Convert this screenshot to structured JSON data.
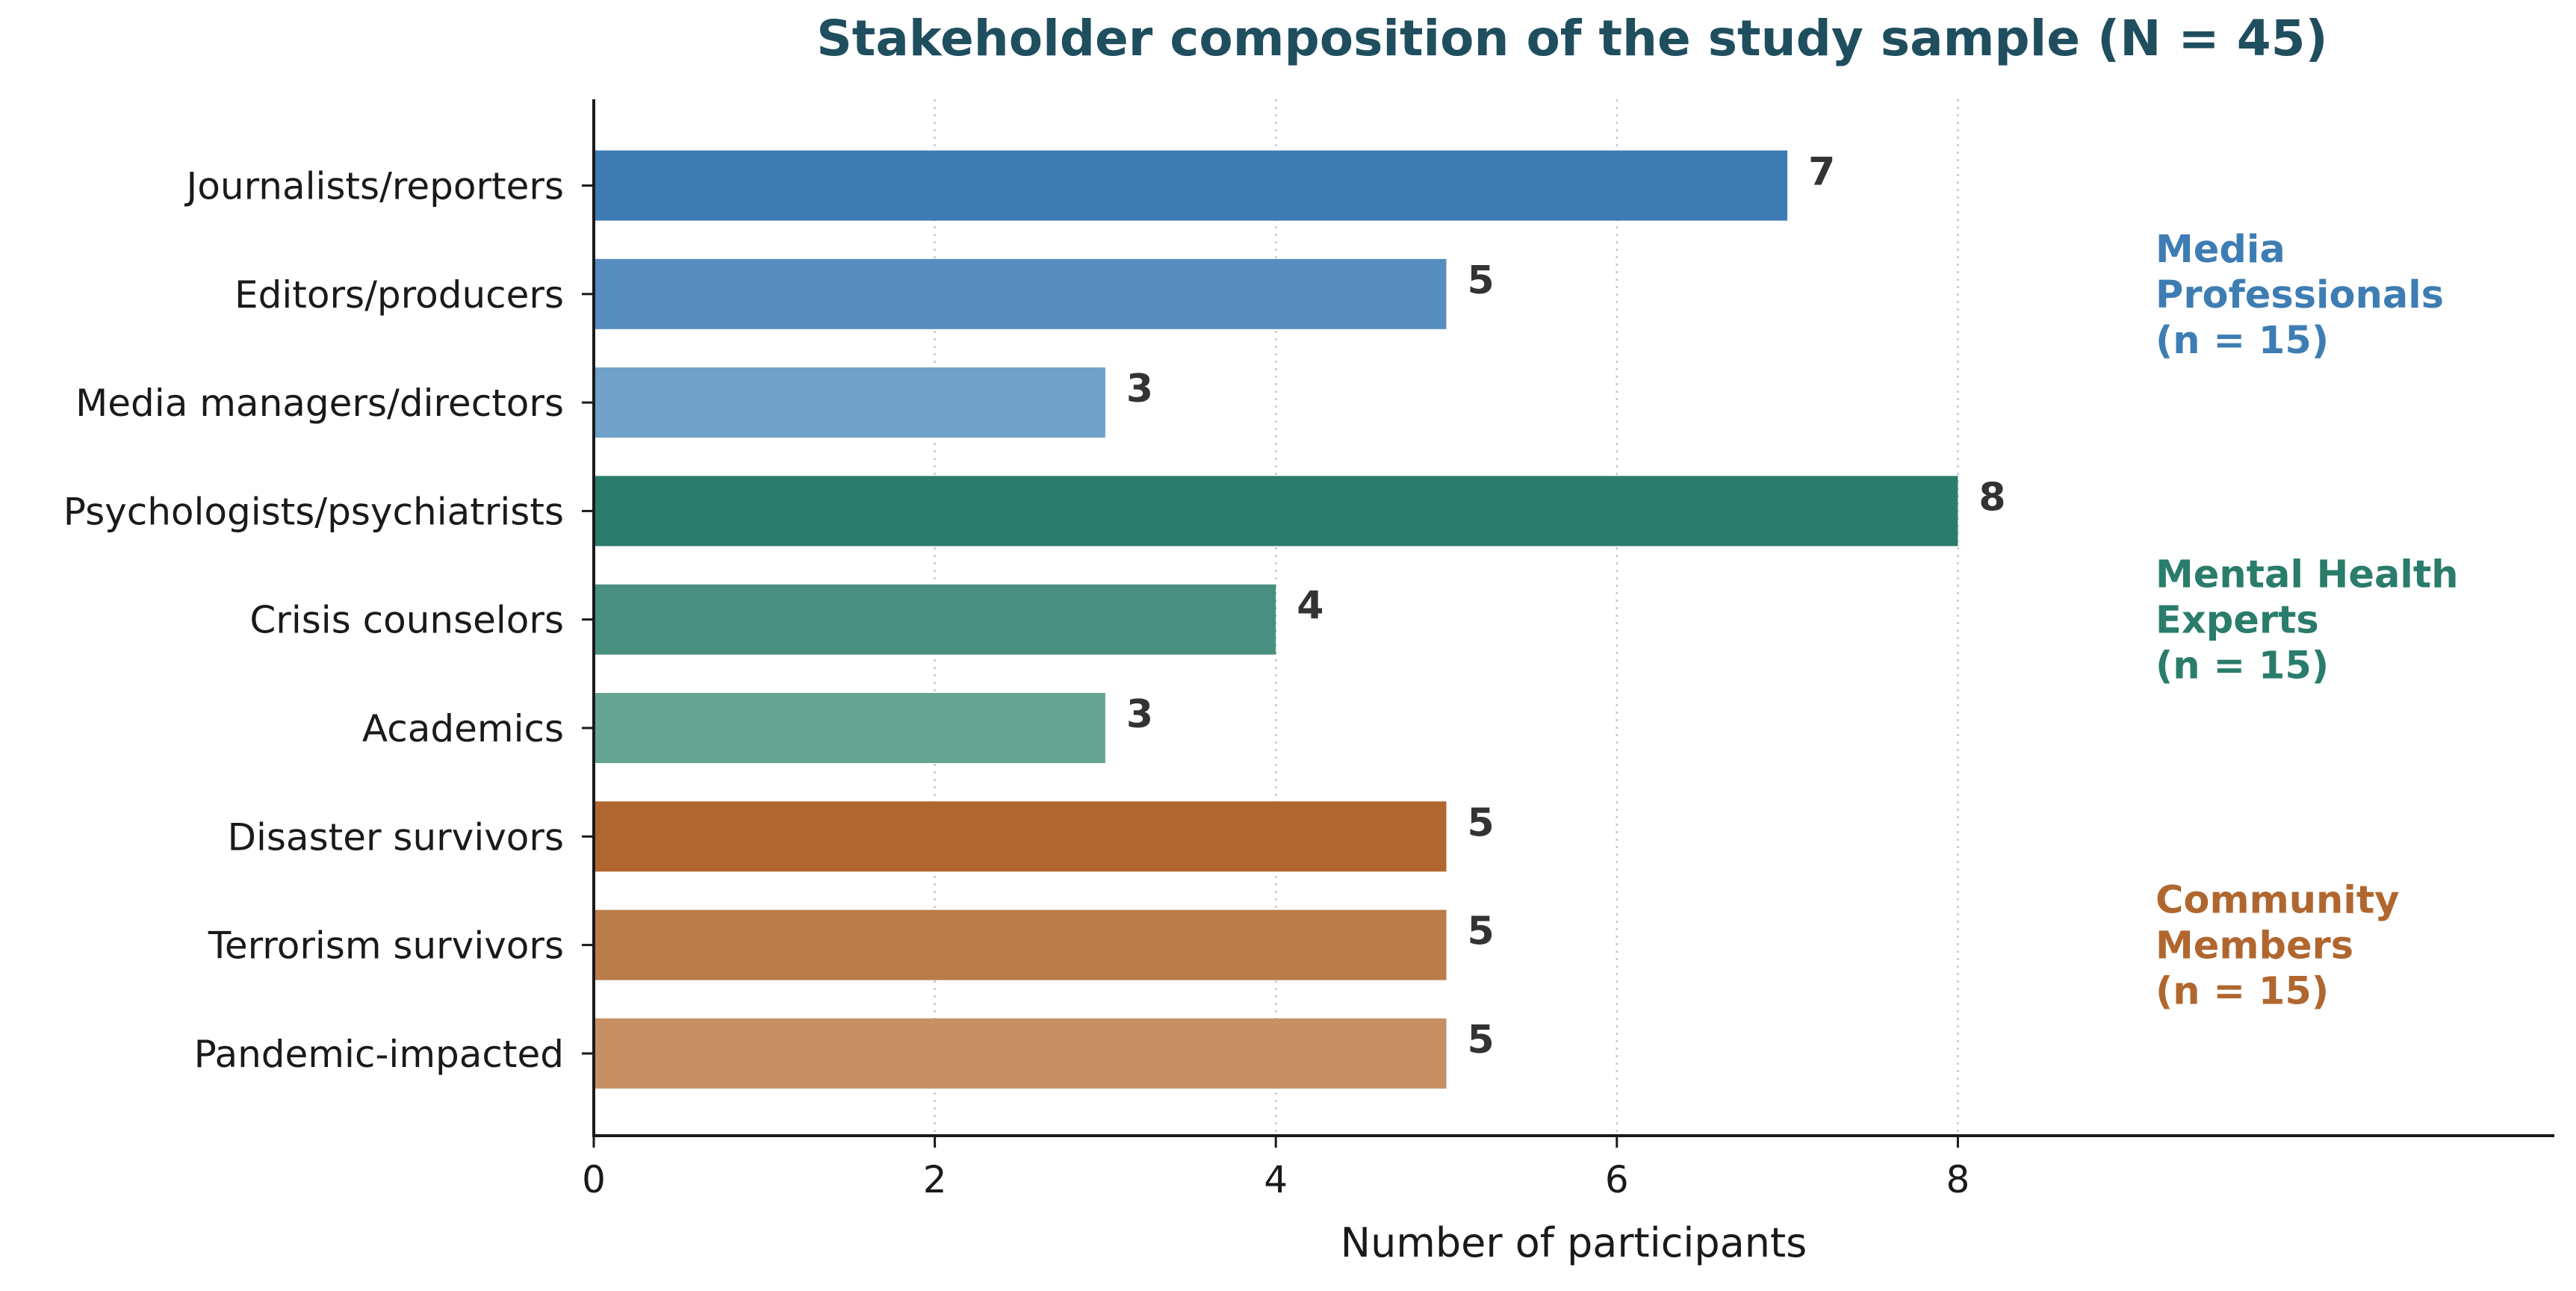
{
  "chart_data": {
    "type": "bar",
    "orientation": "horizontal",
    "title": "Stakeholder composition of the study sample (N = 45)",
    "xlabel": "Number of participants",
    "ylabel": "",
    "xlim": [
      0,
      11.5
    ],
    "xticks": [
      0,
      2,
      4,
      6,
      8
    ],
    "grid": "vertical dotted",
    "categories": [
      "Journalists/reporters",
      "Editors/producers",
      "Media managers/directors",
      "Psychologists/psychiatrists",
      "Crisis counselors",
      "Academics",
      "Disaster survivors",
      "Terrorism survivors",
      "Pandemic-impacted"
    ],
    "values": [
      7,
      5,
      3,
      8,
      4,
      3,
      5,
      5,
      5
    ],
    "colors": [
      "#3e7db3",
      "#578cbe",
      "#6fa1c9",
      "#2a7c6b",
      "#4a9080",
      "#66a393",
      "#b0672f",
      "#ba7c48",
      "#c69064"
    ],
    "groups": [
      {
        "lines": [
          "Media",
          "Professionals",
          "(n = 15)"
        ],
        "color": "#3e7db3",
        "start": 0,
        "end": 2
      },
      {
        "lines": [
          "Mental Health",
          "Experts",
          "(n = 15)"
        ],
        "color": "#2a7c6b",
        "start": 3,
        "end": 5
      },
      {
        "lines": [
          "Community",
          "Members",
          "(n = 15)"
        ],
        "color": "#b0672f",
        "start": 6,
        "end": 8
      }
    ],
    "title_color": "#1f4e5f"
  }
}
